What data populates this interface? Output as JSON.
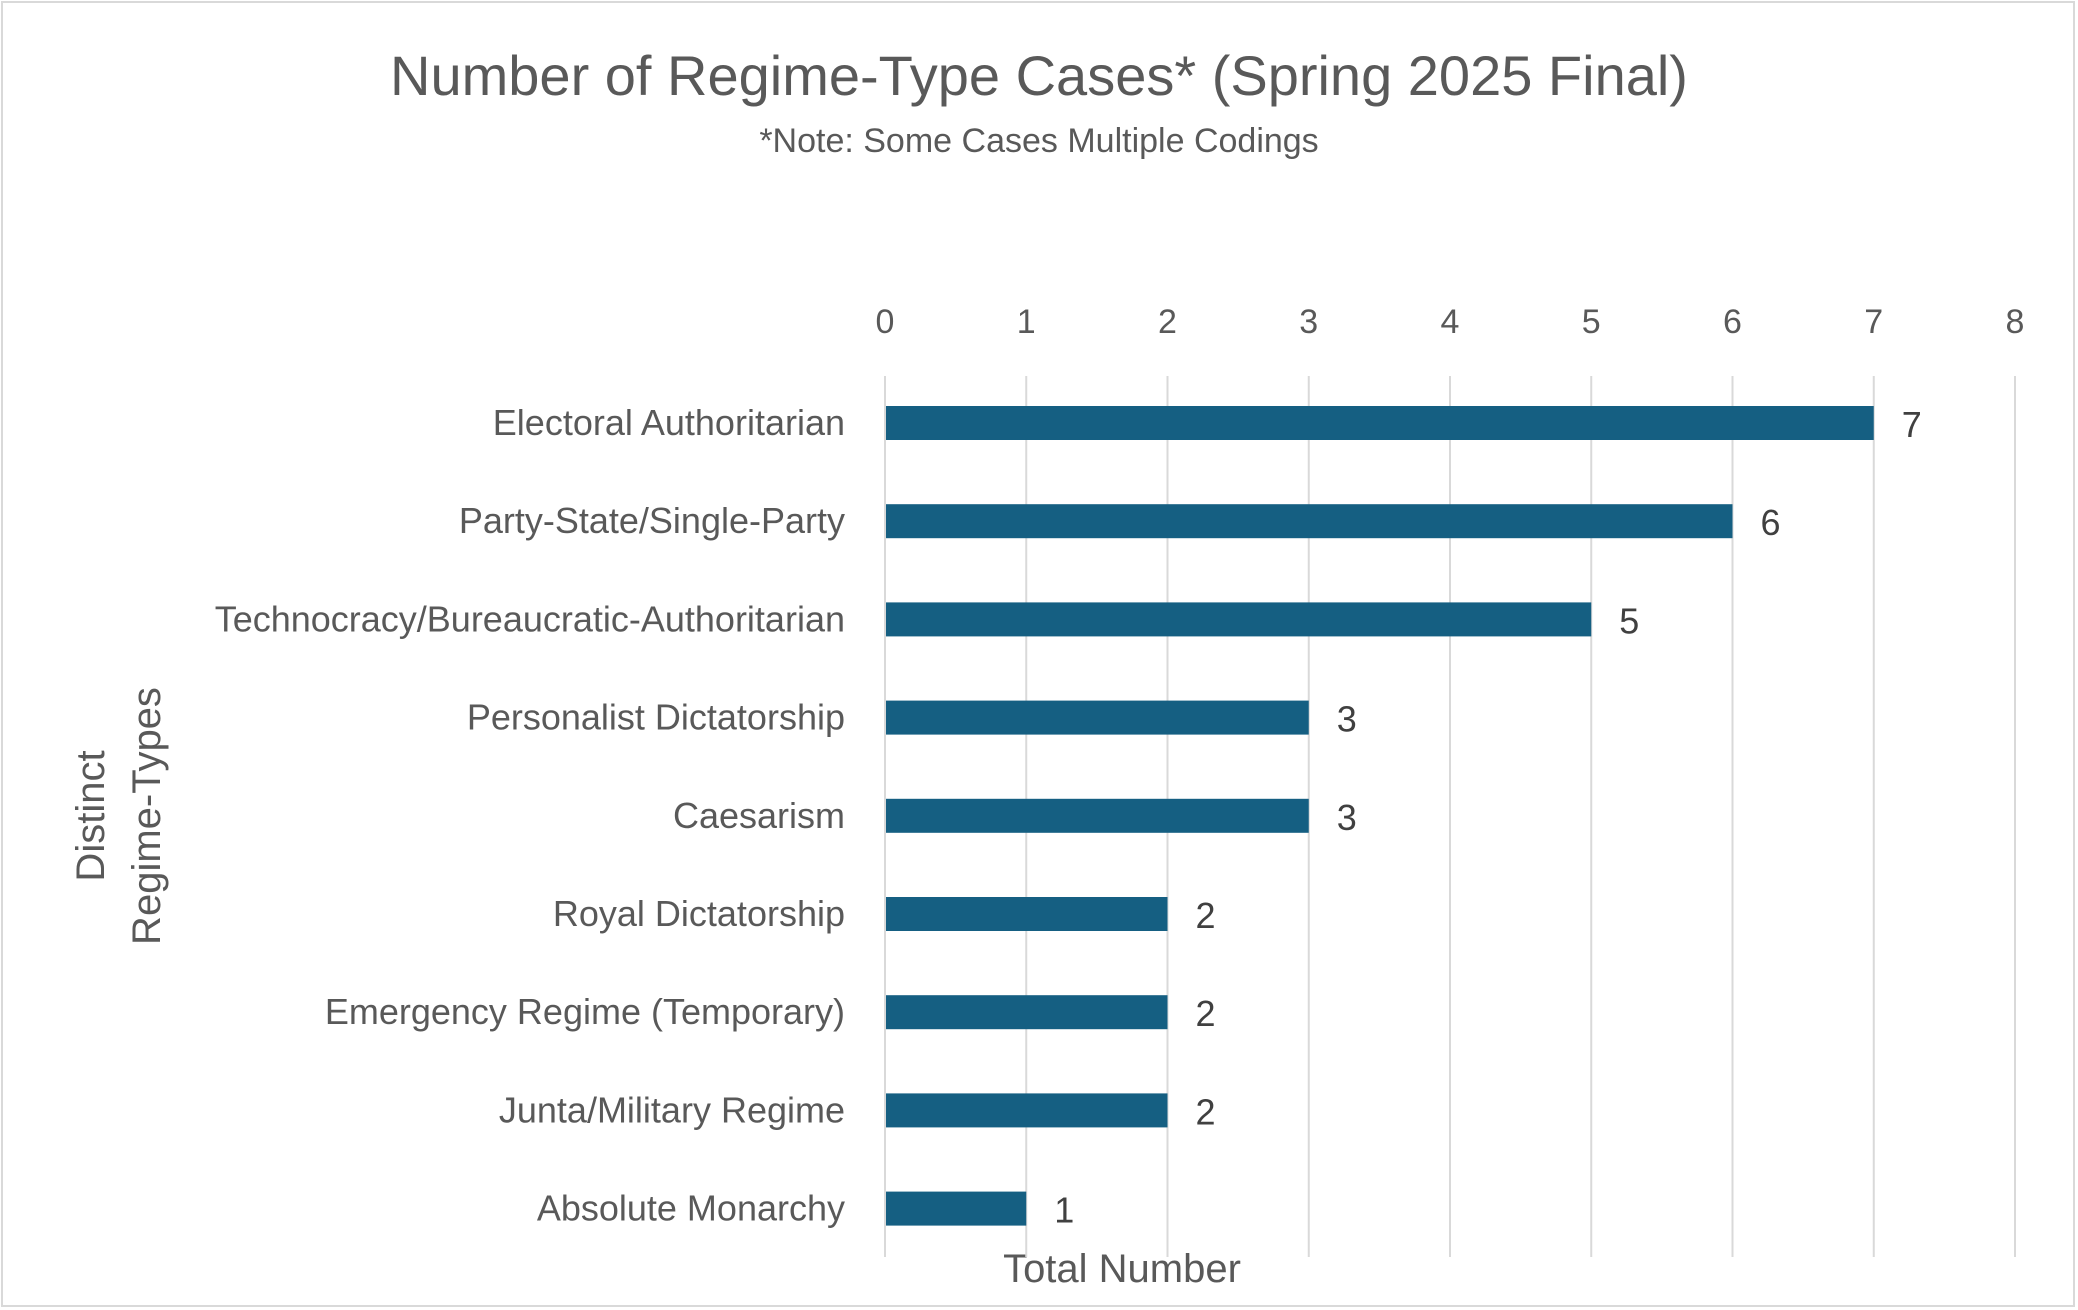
{
  "chart_data": {
    "type": "bar",
    "orientation": "horizontal",
    "title": "Number of Regime-Type Cases* (Spring 2025 Final)",
    "subtitle": "*Note: Some Cases Multiple Codings",
    "xlabel": "Total Number",
    "ylabel_lines": [
      "Distinct",
      "Regime-Types"
    ],
    "xlim": [
      0,
      8
    ],
    "xticks": [
      "0",
      "1",
      "2",
      "3",
      "4",
      "5",
      "6",
      "7",
      "8"
    ],
    "x_axis_position": "top",
    "grid": "vertical",
    "bar_color": "#155f82",
    "categories": [
      "Electoral Authoritarian",
      "Party-State/Single-Party",
      "Technocracy/Bureaucratic-Authoritarian",
      "Personalist Dictatorship",
      "Caesarism",
      "Royal Dictatorship",
      "Emergency Regime (Temporary)",
      "Junta/Military Regime",
      "Absolute Monarchy"
    ],
    "values": [
      7,
      6,
      5,
      3,
      3,
      2,
      2,
      2,
      1
    ],
    "data_labels": [
      "7",
      "6",
      "5",
      "3",
      "3",
      "2",
      "2",
      "2",
      "1"
    ]
  }
}
